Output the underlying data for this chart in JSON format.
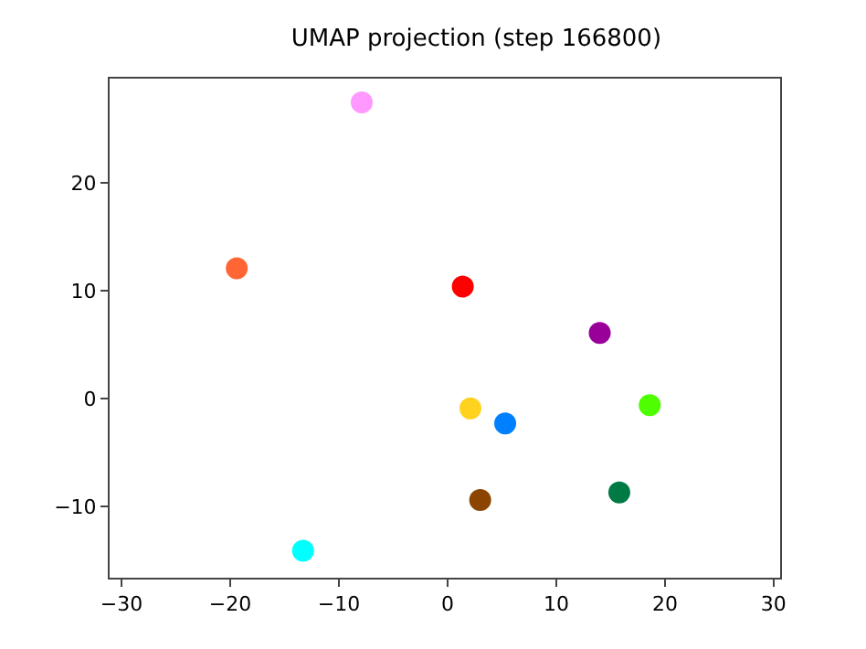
{
  "chart_data": {
    "type": "scatter",
    "title": "UMAP projection (step 166800)",
    "xlim": [
      -31.1,
      30.6
    ],
    "xticks": [
      -30,
      -20,
      -10,
      0,
      10,
      20,
      30
    ],
    "ylim": [
      -16.6,
      29.7
    ],
    "yticks": [
      -10,
      0,
      10,
      20
    ],
    "grid": false,
    "marker": "circle",
    "series": [
      {
        "color": "#ff99ff",
        "x": [
          -7.9
        ],
        "values": [
          27.5
        ]
      },
      {
        "color": "#ff6633",
        "x": [
          -19.4
        ],
        "values": [
          12.1
        ]
      },
      {
        "color": "#ff0000",
        "x": [
          1.4
        ],
        "values": [
          10.4
        ]
      },
      {
        "color": "#990099",
        "x": [
          14.0
        ],
        "values": [
          6.1
        ]
      },
      {
        "color": "#ffd21f",
        "x": [
          2.1
        ],
        "values": [
          -0.9
        ]
      },
      {
        "color": "#0080ff",
        "x": [
          5.3
        ],
        "values": [
          -2.3
        ]
      },
      {
        "color": "#4dff00",
        "x": [
          18.6
        ],
        "values": [
          -0.6
        ]
      },
      {
        "color": "#007a45",
        "x": [
          15.8
        ],
        "values": [
          -8.7
        ]
      },
      {
        "color": "#8b4500",
        "x": [
          3.0
        ],
        "values": [
          -9.4
        ]
      },
      {
        "color": "#00ffff",
        "x": [
          -13.3
        ],
        "values": [
          -14.1
        ]
      }
    ]
  }
}
